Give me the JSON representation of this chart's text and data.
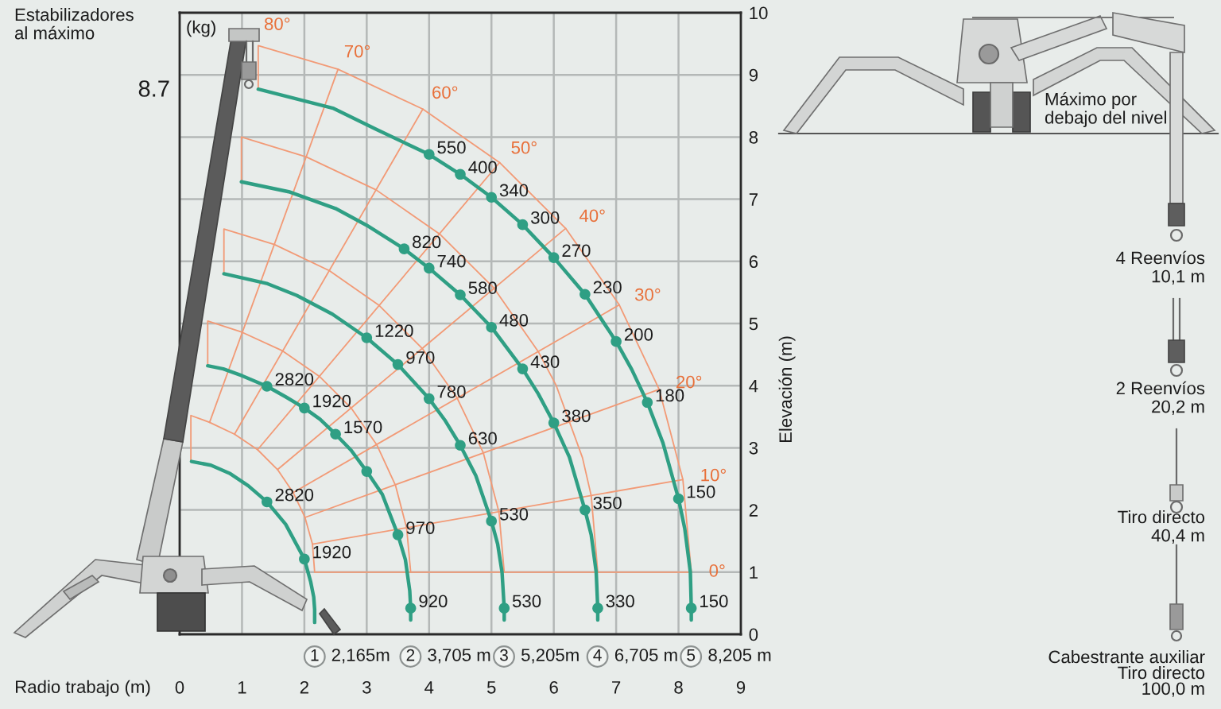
{
  "chart_data": {
    "type": "line",
    "xlabel": "Radio trabajo (m)",
    "ylabel": "Elevación (m)",
    "xlim": [
      0,
      9
    ],
    "ylim": [
      0,
      10
    ],
    "xticks": [
      0,
      1,
      2,
      3,
      4,
      5,
      6,
      7,
      8,
      9
    ],
    "yticks": [
      0,
      1,
      2,
      3,
      4,
      5,
      6,
      7,
      8,
      9,
      10
    ],
    "grid": true,
    "series": [
      {
        "color": "#f29a76",
        "x": [
          0.18,
          0.18,
          0.48,
          0.88,
          1.25,
          1.57,
          1.82,
          2.01,
          2.13,
          2.165
        ],
        "values": [
          2.79,
          3.52,
          3.41,
          3.22,
          2.97,
          2.65,
          2.28,
          1.88,
          1.45,
          1.0
        ]
      },
      {
        "color": "#f29a76",
        "x": [
          0.45,
          0.45,
          1.0,
          1.65,
          2.24,
          2.75,
          3.16,
          3.46,
          3.64,
          3.705
        ],
        "values": [
          4.32,
          5.04,
          4.86,
          4.56,
          4.15,
          3.64,
          3.05,
          2.4,
          1.71,
          1.0
        ]
      },
      {
        "color": "#f29a76",
        "x": [
          0.71,
          0.71,
          1.52,
          2.4,
          3.2,
          3.89,
          4.45,
          4.87,
          5.12,
          5.205
        ],
        "values": [
          5.8,
          6.52,
          6.27,
          5.85,
          5.29,
          4.6,
          3.8,
          2.92,
          1.97,
          1.0
        ]
      },
      {
        "color": "#f29a76",
        "x": [
          0.99,
          0.99,
          2.03,
          3.15,
          4.17,
          5.04,
          5.75,
          6.04,
          6.46,
          6.6,
          6.705
        ],
        "values": [
          7.28,
          8.0,
          7.68,
          7.15,
          6.44,
          5.57,
          4.55,
          4.0,
          2.84,
          2.23,
          1.0
        ]
      },
      {
        "color": "#f29a76",
        "x": [
          1.26,
          1.26,
          2.54,
          3.9,
          5.13,
          6.19,
          7.05,
          7.69,
          8.07,
          8.205
        ],
        "values": [
          8.77,
          9.47,
          9.09,
          8.45,
          7.59,
          6.53,
          5.3,
          3.94,
          2.49,
          1.0
        ]
      },
      {
        "name": "0°",
        "color": "#f29a76",
        "x": [
          2.165,
          8.205
        ],
        "values": [
          1.0,
          1.0
        ]
      },
      {
        "name": "10°",
        "color": "#f29a76",
        "x": [
          2.13,
          8.07
        ],
        "values": [
          1.45,
          2.49
        ]
      },
      {
        "name": "20°",
        "color": "#f29a76",
        "x": [
          2.01,
          7.69
        ],
        "values": [
          1.88,
          3.94
        ]
      },
      {
        "name": "30°",
        "color": "#f29a76",
        "x": [
          1.82,
          7.05
        ],
        "values": [
          2.28,
          5.3
        ]
      },
      {
        "name": "40°",
        "color": "#f29a76",
        "x": [
          1.57,
          6.19
        ],
        "values": [
          2.65,
          6.53
        ]
      },
      {
        "name": "50°",
        "color": "#f29a76",
        "x": [
          1.25,
          5.13
        ],
        "values": [
          2.97,
          7.59
        ]
      },
      {
        "name": "60°",
        "color": "#f29a76",
        "x": [
          0.88,
          3.9
        ],
        "values": [
          3.22,
          8.45
        ]
      },
      {
        "name": "70°",
        "color": "#f29a76",
        "x": [
          0.48,
          2.54
        ],
        "values": [
          3.41,
          9.09
        ]
      },
      {
        "name": "2,165m",
        "color": "#2f9f84",
        "x": [
          0.19,
          0.5,
          0.8,
          1.1,
          1.4,
          1.7,
          2.0,
          2.1,
          2.15,
          2.165,
          2.165
        ],
        "values": [
          2.78,
          2.72,
          2.59,
          2.39,
          2.13,
          1.77,
          1.21,
          0.85,
          0.6,
          0.4,
          0.19
        ]
      },
      {
        "name": "3,705 m",
        "color": "#2f9f84",
        "x": [
          0.45,
          0.7,
          1.0,
          1.4,
          1.7,
          2.0,
          2.25,
          2.5,
          2.75,
          3.0,
          3.25,
          3.5,
          3.62,
          3.69,
          3.705,
          3.705
        ],
        "values": [
          4.32,
          4.27,
          4.16,
          3.99,
          3.82,
          3.64,
          3.46,
          3.22,
          2.96,
          2.62,
          2.25,
          1.6,
          1.2,
          0.7,
          0.42,
          0.23
        ]
      },
      {
        "name": "5,205m",
        "color": "#2f9f84",
        "x": [
          0.71,
          1.41,
          1.88,
          2.45,
          3.0,
          3.5,
          4.0,
          4.25,
          4.5,
          4.75,
          5.0,
          5.1,
          5.17,
          5.205,
          5.205
        ],
        "values": [
          5.8,
          5.64,
          5.45,
          5.15,
          4.77,
          4.34,
          3.79,
          3.45,
          3.04,
          2.55,
          1.82,
          1.45,
          1.0,
          0.42,
          0.23
        ]
      },
      {
        "name": "6,705 m",
        "color": "#2f9f84",
        "x": [
          0.99,
          1.75,
          2.5,
          3.0,
          3.6,
          4.0,
          4.5,
          5.0,
          5.5,
          5.75,
          6.0,
          6.25,
          6.5,
          6.6,
          6.68,
          6.705,
          6.705
        ],
        "values": [
          7.28,
          7.12,
          6.85,
          6.58,
          6.2,
          5.89,
          5.46,
          4.94,
          4.27,
          3.87,
          3.4,
          2.85,
          2.0,
          1.6,
          1.0,
          0.42,
          0.23
        ]
      },
      {
        "name": "8,205 m",
        "color": "#2f9f84",
        "x": [
          1.26,
          2.47,
          3.16,
          4.0,
          4.5,
          5.0,
          5.5,
          6.0,
          6.5,
          7.0,
          7.25,
          7.5,
          7.75,
          8.0,
          8.1,
          8.19,
          8.205,
          8.205
        ],
        "values": [
          8.77,
          8.46,
          8.12,
          7.72,
          7.4,
          7.03,
          6.59,
          6.06,
          5.47,
          4.71,
          4.26,
          3.73,
          3.08,
          2.18,
          1.7,
          1.0,
          0.42,
          0.23
        ]
      },
      {
        "type": "scatter",
        "color": "#2f9f84",
        "marker": "circle",
        "x": [
          1.4,
          2.0
        ],
        "values": [
          2.13,
          1.21
        ]
      },
      {
        "type": "scatter",
        "color": "#2f9f84",
        "marker": "circle",
        "x": [
          1.4,
          2.0,
          2.5,
          3.0,
          3.5,
          3.705
        ],
        "values": [
          3.99,
          3.64,
          3.22,
          2.62,
          1.6,
          0.42
        ]
      },
      {
        "type": "scatter",
        "color": "#2f9f84",
        "marker": "circle",
        "x": [
          3.0,
          3.5,
          4.0,
          4.5,
          5.0,
          5.205
        ],
        "values": [
          4.77,
          4.34,
          3.79,
          3.04,
          1.82,
          0.42
        ]
      },
      {
        "type": "scatter",
        "color": "#2f9f84",
        "marker": "circle",
        "x": [
          3.6,
          4.0,
          4.5,
          5.0,
          5.5,
          6.0,
          6.5,
          6.705
        ],
        "values": [
          6.2,
          5.89,
          5.46,
          4.94,
          4.27,
          3.4,
          2.0,
          0.42
        ]
      },
      {
        "type": "scatter",
        "color": "#2f9f84",
        "marker": "circle",
        "x": [
          4.0,
          4.5,
          5.0,
          5.5,
          6.0,
          6.5,
          7.0,
          7.5,
          8.0,
          8.205
        ],
        "values": [
          7.72,
          7.4,
          7.03,
          6.59,
          6.06,
          5.47,
          4.71,
          3.73,
          2.18,
          0.42
        ]
      }
    ],
    "annotations": [
      "Estabilizadores\nal máximo",
      "8.7",
      "(kg)",
      "80°",
      "Máximo por\ndebajo del nivel",
      "4 Reenvíos\n10,1 m",
      "2 Reenvíos\n20,2 m",
      "Tiro directo\n40,4 m",
      "Cabestrante auxiliar\nTiro directo\n100,0 m",
      "1",
      "2",
      "3",
      "4",
      "5",
      {
        "text": "2820",
        "x": 1.4,
        "y": 2.13
      },
      {
        "text": "1920",
        "x": 2.0,
        "y": 1.21
      },
      {
        "text": "2820",
        "x": 1.4,
        "y": 3.99
      },
      {
        "text": "1920",
        "x": 2.0,
        "y": 3.64
      },
      {
        "text": "1570",
        "x": 2.5,
        "y": 3.22
      },
      {
        "text": "970",
        "x": 3.5,
        "y": 1.6
      },
      {
        "text": "920",
        "x": 3.705,
        "y": 0.42
      },
      {
        "text": "1220",
        "x": 3.0,
        "y": 4.77
      },
      {
        "text": "970",
        "x": 3.5,
        "y": 4.34
      },
      {
        "text": "780",
        "x": 4.0,
        "y": 3.79
      },
      {
        "text": "630",
        "x": 4.5,
        "y": 3.04
      },
      {
        "text": "530",
        "x": 5.0,
        "y": 1.82
      },
      {
        "text": "530",
        "x": 5.205,
        "y": 0.42
      },
      {
        "text": "820",
        "x": 3.6,
        "y": 6.2
      },
      {
        "text": "740",
        "x": 4.0,
        "y": 5.89
      },
      {
        "text": "580",
        "x": 4.5,
        "y": 5.46
      },
      {
        "text": "480",
        "x": 5.0,
        "y": 4.94
      },
      {
        "text": "430",
        "x": 5.5,
        "y": 4.27
      },
      {
        "text": "380",
        "x": 6.0,
        "y": 3.4
      },
      {
        "text": "350",
        "x": 6.5,
        "y": 2.0
      },
      {
        "text": "330",
        "x": 6.705,
        "y": 0.42
      },
      {
        "text": "550",
        "x": 4.0,
        "y": 7.72
      },
      {
        "text": "400",
        "x": 4.5,
        "y": 7.4
      },
      {
        "text": "340",
        "x": 5.0,
        "y": 7.03
      },
      {
        "text": "300",
        "x": 5.5,
        "y": 6.59
      },
      {
        "text": "270",
        "x": 6.0,
        "y": 6.06
      },
      {
        "text": "230",
        "x": 6.5,
        "y": 5.47
      },
      {
        "text": "200",
        "x": 7.0,
        "y": 4.71
      },
      {
        "text": "180",
        "x": 7.5,
        "y": 3.73
      },
      {
        "text": "150",
        "x": 8.0,
        "y": 2.18
      },
      {
        "text": "150",
        "x": 8.205,
        "y": 0.42
      }
    ]
  }
}
